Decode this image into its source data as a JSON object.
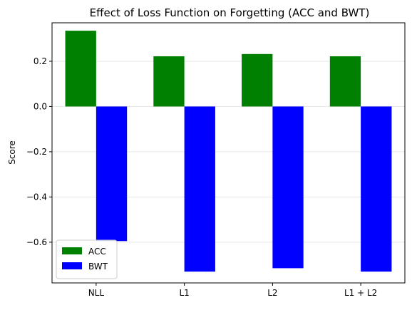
{
  "chart_data": {
    "type": "bar",
    "title": "Effect of Loss Function on Forgetting (ACC and BWT)",
    "xlabel": "",
    "ylabel": "Score",
    "categories": [
      "NLL",
      "L1",
      "L2",
      "L1 + L2"
    ],
    "series": [
      {
        "name": "ACC",
        "values": [
          0.335,
          0.222,
          0.232,
          0.222
        ],
        "color": "#008000"
      },
      {
        "name": "BWT",
        "values": [
          -0.595,
          -0.73,
          -0.715,
          -0.73
        ],
        "color": "#0000ff"
      }
    ],
    "ylim": [
      -0.78,
      0.37
    ],
    "yticks": [
      0.2,
      0.0,
      -0.2,
      -0.4,
      -0.6
    ],
    "ytick_labels": [
      "0.2",
      "0.0",
      "−0.2",
      "−0.4",
      "−0.6"
    ],
    "grid": true,
    "legend": "lower-left"
  }
}
